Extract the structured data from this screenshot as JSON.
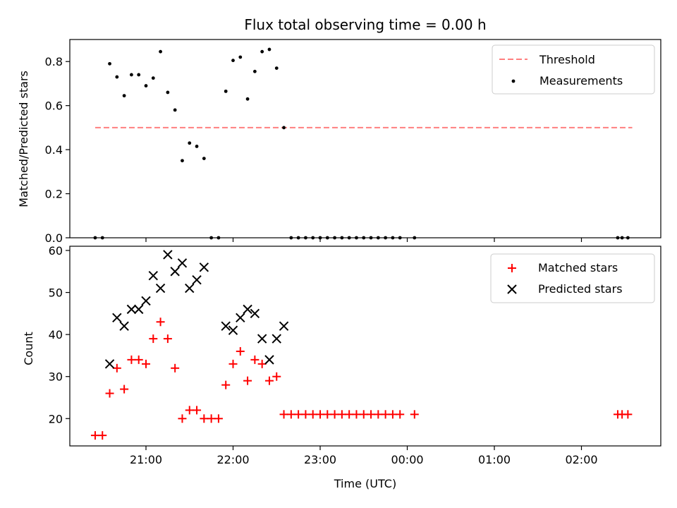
{
  "chart_data": [
    {
      "type": "scatter",
      "title": "Flux total observing time = 0.00 h",
      "xlabel": "",
      "ylabel": "Matched/Predicted stars",
      "ylim": [
        0,
        0.9
      ],
      "yticks": [
        "0.0",
        "0.2",
        "0.4",
        "0.6",
        "0.8"
      ],
      "ytick_values": [
        0,
        0.2,
        0.4,
        0.6,
        0.8
      ],
      "legend_position": "top-right",
      "threshold": {
        "name": "Threshold",
        "value": 0.5,
        "x_start": "20:25",
        "x_end": "02:35",
        "color": "#ff7f7f"
      },
      "series": [
        {
          "name": "Measurements",
          "color": "#000000",
          "marker": "dot",
          "points": [
            [
              "20:25",
              0
            ],
            [
              "20:30",
              0
            ],
            [
              "20:35",
              0.79
            ],
            [
              "20:40",
              0.73
            ],
            [
              "20:45",
              0.645
            ],
            [
              "20:50",
              0.74
            ],
            [
              "20:55",
              0.74
            ],
            [
              "21:00",
              0.69
            ],
            [
              "21:05",
              0.725
            ],
            [
              "21:10",
              0.845
            ],
            [
              "21:15",
              0.66
            ],
            [
              "21:20",
              0.58
            ],
            [
              "21:25",
              0.35
            ],
            [
              "21:30",
              0.43
            ],
            [
              "21:35",
              0.415
            ],
            [
              "21:40",
              0.36
            ],
            [
              "21:45",
              0
            ],
            [
              "21:50",
              0
            ],
            [
              "21:55",
              0.665
            ],
            [
              "22:00",
              0.805
            ],
            [
              "22:05",
              0.82
            ],
            [
              "22:10",
              0.63
            ],
            [
              "22:15",
              0.755
            ],
            [
              "22:20",
              0.845
            ],
            [
              "22:25",
              0.855
            ],
            [
              "22:30",
              0.77
            ],
            [
              "22:35",
              0.5
            ],
            [
              "22:40",
              0
            ],
            [
              "22:45",
              0
            ],
            [
              "22:50",
              0
            ],
            [
              "22:55",
              0
            ],
            [
              "23:00",
              0
            ],
            [
              "23:05",
              0
            ],
            [
              "23:10",
              0
            ],
            [
              "23:15",
              0
            ],
            [
              "23:20",
              0
            ],
            [
              "23:25",
              0
            ],
            [
              "23:30",
              0
            ],
            [
              "23:35",
              0
            ],
            [
              "23:40",
              0
            ],
            [
              "23:45",
              0
            ],
            [
              "23:50",
              0
            ],
            [
              "23:55",
              0
            ],
            [
              "00:05",
              0
            ],
            [
              "02:25",
              0
            ],
            [
              "02:28",
              0
            ],
            [
              "02:32",
              0
            ]
          ]
        }
      ]
    },
    {
      "type": "scatter",
      "title": "",
      "xlabel": "Time (UTC)",
      "ylabel": "Count",
      "ylim": [
        13.5,
        61
      ],
      "yticks": [
        "20",
        "30",
        "40",
        "50",
        "60"
      ],
      "ytick_values": [
        20,
        30,
        40,
        50,
        60
      ],
      "xticks": [
        "21:00",
        "22:00",
        "23:00",
        "00:00",
        "01:00",
        "02:00"
      ],
      "legend_position": "top-right",
      "series": [
        {
          "name": "Matched stars",
          "color": "#ff0000",
          "marker": "plus",
          "points": [
            [
              "20:25",
              16
            ],
            [
              "20:30",
              16
            ],
            [
              "20:35",
              26
            ],
            [
              "20:40",
              32
            ],
            [
              "20:45",
              27
            ],
            [
              "20:50",
              34
            ],
            [
              "20:55",
              34
            ],
            [
              "21:00",
              33
            ],
            [
              "21:05",
              39
            ],
            [
              "21:10",
              43
            ],
            [
              "21:15",
              39
            ],
            [
              "21:20",
              32
            ],
            [
              "21:25",
              20
            ],
            [
              "21:30",
              22
            ],
            [
              "21:35",
              22
            ],
            [
              "21:40",
              20
            ],
            [
              "21:45",
              20
            ],
            [
              "21:50",
              20
            ],
            [
              "21:55",
              28
            ],
            [
              "22:00",
              33
            ],
            [
              "22:05",
              36
            ],
            [
              "22:10",
              29
            ],
            [
              "22:15",
              34
            ],
            [
              "22:20",
              33
            ],
            [
              "22:25",
              29
            ],
            [
              "22:30",
              30
            ],
            [
              "22:35",
              21
            ],
            [
              "22:40",
              21
            ],
            [
              "22:45",
              21
            ],
            [
              "22:50",
              21
            ],
            [
              "22:55",
              21
            ],
            [
              "23:00",
              21
            ],
            [
              "23:05",
              21
            ],
            [
              "23:10",
              21
            ],
            [
              "23:15",
              21
            ],
            [
              "23:20",
              21
            ],
            [
              "23:25",
              21
            ],
            [
              "23:30",
              21
            ],
            [
              "23:35",
              21
            ],
            [
              "23:40",
              21
            ],
            [
              "23:45",
              21
            ],
            [
              "23:50",
              21
            ],
            [
              "23:55",
              21
            ],
            [
              "00:05",
              21
            ],
            [
              "02:25",
              21
            ],
            [
              "02:28",
              21
            ],
            [
              "02:32",
              21
            ]
          ]
        },
        {
          "name": "Predicted stars",
          "color": "#000000",
          "marker": "cross",
          "points": [
            [
              "20:35",
              33
            ],
            [
              "20:40",
              44
            ],
            [
              "20:45",
              42
            ],
            [
              "20:50",
              46
            ],
            [
              "20:55",
              46
            ],
            [
              "21:00",
              48
            ],
            [
              "21:05",
              54
            ],
            [
              "21:10",
              51
            ],
            [
              "21:15",
              59
            ],
            [
              "21:20",
              55
            ],
            [
              "21:25",
              57
            ],
            [
              "21:30",
              51
            ],
            [
              "21:35",
              53
            ],
            [
              "21:40",
              56
            ],
            [
              "21:55",
              42
            ],
            [
              "22:00",
              41
            ],
            [
              "22:05",
              44
            ],
            [
              "22:10",
              46
            ],
            [
              "22:15",
              45
            ],
            [
              "22:20",
              39
            ],
            [
              "22:25",
              34
            ],
            [
              "22:30",
              39
            ],
            [
              "22:35",
              42
            ]
          ]
        }
      ]
    }
  ]
}
